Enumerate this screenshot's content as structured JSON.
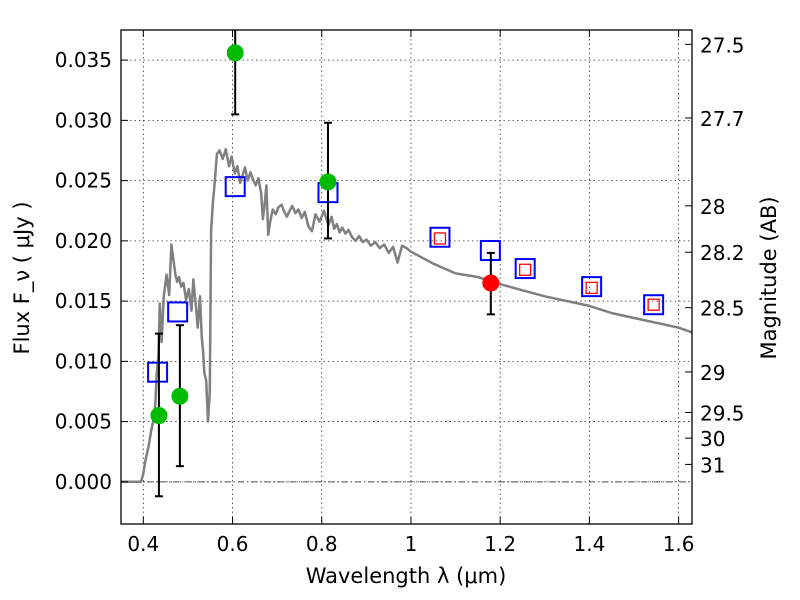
{
  "chart_data": {
    "type": "scatter",
    "title": "",
    "xlabel": "Wavelength  λ (μm)",
    "ylabel": "Flux  F_ν  ( μJy )",
    "ylabel_right": "Magnitude (AB)",
    "xlim": [
      0.35,
      1.63
    ],
    "ylim": [
      -0.0035,
      0.0375
    ],
    "grid": true,
    "x_ticks": [
      0.4,
      0.6,
      0.8,
      1.0,
      1.2,
      1.4,
      1.6
    ],
    "x_tick_labels": [
      "0.4",
      "0.6",
      "0.8",
      "1",
      "1.2",
      "1.4",
      "1.6"
    ],
    "y_ticks": [
      0.0,
      0.005,
      0.01,
      0.015,
      0.02,
      0.025,
      0.03,
      0.035
    ],
    "y_tick_labels": [
      "0.000",
      "0.005",
      "0.010",
      "0.015",
      "0.020",
      "0.025",
      "0.030",
      "0.035"
    ],
    "mag_ticks": [
      27.5,
      27.7,
      28,
      28.2,
      28.5,
      29,
      29.5,
      30,
      31
    ],
    "mag_tick_labels": [
      "27.5",
      "27.7",
      "28",
      "28.2",
      "28.5",
      "29",
      "29.5",
      "30",
      "31"
    ],
    "reference_line_y": 0.0,
    "series": [
      {
        "name": "Model SED",
        "kind": "line",
        "color": "#808080",
        "x": [
          0.35,
          0.395,
          0.4,
          0.405,
          0.412,
          0.418,
          0.422,
          0.427,
          0.43,
          0.434,
          0.437,
          0.441,
          0.446,
          0.452,
          0.458,
          0.463,
          0.468,
          0.472,
          0.476,
          0.48,
          0.485,
          0.49,
          0.496,
          0.502,
          0.508,
          0.512,
          0.518,
          0.522,
          0.527,
          0.531,
          0.534,
          0.537,
          0.541,
          0.545,
          0.549,
          0.552,
          0.556,
          0.56,
          0.565,
          0.571,
          0.578,
          0.585,
          0.592,
          0.598,
          0.605,
          0.611,
          0.617,
          0.623,
          0.628,
          0.634,
          0.64,
          0.646,
          0.652,
          0.658,
          0.664,
          0.668,
          0.672,
          0.676,
          0.68,
          0.684,
          0.69,
          0.697,
          0.703,
          0.71,
          0.716,
          0.722,
          0.728,
          0.734,
          0.741,
          0.748,
          0.755,
          0.762,
          0.77,
          0.778,
          0.786,
          0.795,
          0.805,
          0.815,
          0.822,
          0.828,
          0.834,
          0.84,
          0.846,
          0.853,
          0.86,
          0.868,
          0.876,
          0.884,
          0.892,
          0.9,
          0.91,
          0.92,
          0.93,
          0.94,
          0.95,
          0.96,
          0.97,
          0.98,
          0.99,
          1.0,
          1.05,
          1.1,
          1.15,
          1.2,
          1.25,
          1.3,
          1.35,
          1.4,
          1.45,
          1.5,
          1.55,
          1.6,
          1.63
        ],
        "y": [
          0.0,
          0.0,
          0.0007,
          0.0018,
          0.003,
          0.0043,
          0.005,
          0.0064,
          0.009,
          0.0106,
          0.0148,
          0.0116,
          0.0154,
          0.0172,
          0.0155,
          0.0197,
          0.0183,
          0.0172,
          0.0166,
          0.017,
          0.0162,
          0.0165,
          0.0151,
          0.016,
          0.0142,
          0.0168,
          0.0146,
          0.0128,
          0.0154,
          0.0121,
          0.0108,
          0.009,
          0.0084,
          0.005,
          0.0075,
          0.0208,
          0.0232,
          0.0248,
          0.0272,
          0.0275,
          0.0268,
          0.0276,
          0.0262,
          0.027,
          0.0256,
          0.0262,
          0.0248,
          0.0255,
          0.0261,
          0.025,
          0.0257,
          0.0251,
          0.0246,
          0.0252,
          0.024,
          0.0218,
          0.023,
          0.0246,
          0.0205,
          0.0215,
          0.0226,
          0.0222,
          0.0228,
          0.023,
          0.0224,
          0.022,
          0.0225,
          0.0229,
          0.0223,
          0.0226,
          0.0219,
          0.0224,
          0.0212,
          0.0208,
          0.0222,
          0.0216,
          0.0225,
          0.0213,
          0.022,
          0.021,
          0.0214,
          0.0207,
          0.0211,
          0.0206,
          0.0209,
          0.0203,
          0.02,
          0.0204,
          0.0199,
          0.0201,
          0.0196,
          0.0199,
          0.0194,
          0.0197,
          0.019,
          0.0195,
          0.0182,
          0.0196,
          0.0194,
          0.0191,
          0.0181,
          0.0173,
          0.017,
          0.0164,
          0.0159,
          0.0154,
          0.015,
          0.0146,
          0.014,
          0.0136,
          0.0132,
          0.0128,
          0.0124
        ]
      },
      {
        "name": "Observed (green)",
        "kind": "point",
        "color": "#00bb00",
        "x": [
          0.435,
          0.482,
          0.606,
          0.814
        ],
        "y": [
          0.0055,
          0.0071,
          0.0356,
          0.0249
        ],
        "err_low": [
          0.0067,
          0.0058,
          0.0051,
          0.0047
        ],
        "err_high": [
          0.0068,
          0.0059,
          0.0019,
          0.0049
        ]
      },
      {
        "name": "Observed (red)",
        "kind": "point",
        "color": "#ff0000",
        "x": [
          1.179
        ],
        "y": [
          0.0165
        ],
        "err_low": [
          0.0026
        ],
        "err_high": [
          0.0025
        ]
      },
      {
        "name": "Model photometry (blue)",
        "kind": "square",
        "color": "#0000ff",
        "x": [
          0.432,
          0.477,
          0.606,
          0.814,
          1.065,
          1.178,
          1.256,
          1.405,
          1.544
        ],
        "y": [
          0.0091,
          0.0141,
          0.0245,
          0.024,
          0.0203,
          0.0192,
          0.0177,
          0.0162,
          0.0147
        ]
      },
      {
        "name": "Model photometry (red)",
        "kind": "square",
        "color": "#ff0000",
        "x": [
          1.065,
          1.256,
          1.405,
          1.544
        ],
        "y": [
          0.0202,
          0.0176,
          0.0161,
          0.0147
        ]
      }
    ]
  }
}
